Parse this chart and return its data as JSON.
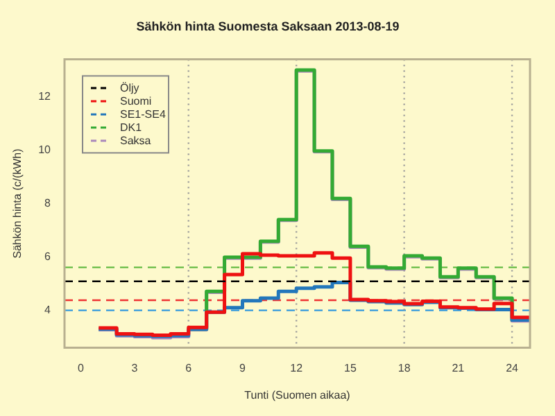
{
  "chart_data": {
    "type": "step",
    "title": "Sähkön hinta Suomesta Saksaan 2013-08-19",
    "xlabel": "Tunti (Suomen aikaa)",
    "ylabel": "Sähkön hinta (c/(kWh)",
    "x": [
      1,
      2,
      3,
      4,
      5,
      6,
      7,
      8,
      9,
      10,
      11,
      12,
      13,
      14,
      15,
      16,
      17,
      18,
      19,
      20,
      21,
      22,
      23,
      24,
      25
    ],
    "series": [
      {
        "name": "Öljy",
        "type": "line",
        "line_style": "dashed",
        "color": "#000000",
        "x": [
          -0.9,
          25
        ],
        "values": [
          5.09,
          5.09
        ]
      },
      {
        "name": "Suomi",
        "color": "#ee1111",
        "values": [
          3.34,
          3.12,
          3.1,
          3.07,
          3.12,
          3.36,
          3.93,
          5.34,
          6.12,
          6.07,
          6.04,
          6.04,
          6.15,
          5.96,
          4.41,
          4.36,
          4.33,
          4.25,
          4.34,
          4.13,
          4.1,
          4.05,
          4.26,
          3.74,
          3.74
        ]
      },
      {
        "name": "SE1-SE4",
        "color": "#2277bb",
        "values": [
          3.3,
          3.08,
          3.05,
          3.03,
          3.06,
          3.3,
          3.93,
          4.1,
          4.36,
          4.46,
          4.71,
          4.83,
          4.88,
          5.04,
          4.38,
          4.33,
          4.28,
          4.22,
          4.3,
          4.1,
          4.08,
          4.03,
          4.03,
          3.64,
          3.64
        ]
      },
      {
        "name": "DK1",
        "color": "#33aa33",
        "values": [
          null,
          null,
          null,
          null,
          null,
          3.3,
          4.71,
          5.99,
          5.99,
          6.59,
          7.4,
          13.0,
          9.97,
          8.19,
          6.4,
          5.63,
          5.58,
          6.04,
          5.96,
          5.26,
          5.58,
          5.26,
          4.46,
          3.64,
          3.64
        ]
      },
      {
        "name": "Saksa",
        "color": "#aa88bb",
        "values": [
          3.28,
          3.05,
          3.02,
          2.98,
          3.02,
          3.28,
          4.68,
          5.96,
          5.96,
          6.56,
          7.37,
          12.97,
          9.94,
          8.16,
          6.37,
          5.6,
          5.55,
          6.01,
          5.93,
          5.23,
          5.55,
          5.23,
          4.43,
          3.61,
          3.61
        ]
      }
    ],
    "xlim": [
      -0.9,
      25
    ],
    "ylim": [
      2.6,
      13.4
    ],
    "xticks": [
      0,
      3,
      6,
      9,
      12,
      15,
      18,
      21,
      24
    ],
    "yticks": [
      4,
      6,
      8,
      10,
      12
    ],
    "ref_lines": [
      {
        "axis": "y",
        "value": 4.38,
        "color": "#ee3333",
        "line_style": "dashed"
      },
      {
        "axis": "y",
        "value": 4.0,
        "color": "#3399dd",
        "line_style": "dashed"
      },
      {
        "axis": "y",
        "value": 5.61,
        "color": "#66bb44",
        "line_style": "dashed"
      },
      {
        "axis": "x",
        "value": 6,
        "color": "#999999",
        "line_style": "dotted"
      },
      {
        "axis": "x",
        "value": 12,
        "color": "#999999",
        "line_style": "dotted"
      },
      {
        "axis": "x",
        "value": 18,
        "color": "#999999",
        "line_style": "dotted"
      },
      {
        "axis": "x",
        "value": 24,
        "color": "#999999",
        "line_style": "dotted"
      }
    ],
    "legend": "top left",
    "grid": false
  }
}
